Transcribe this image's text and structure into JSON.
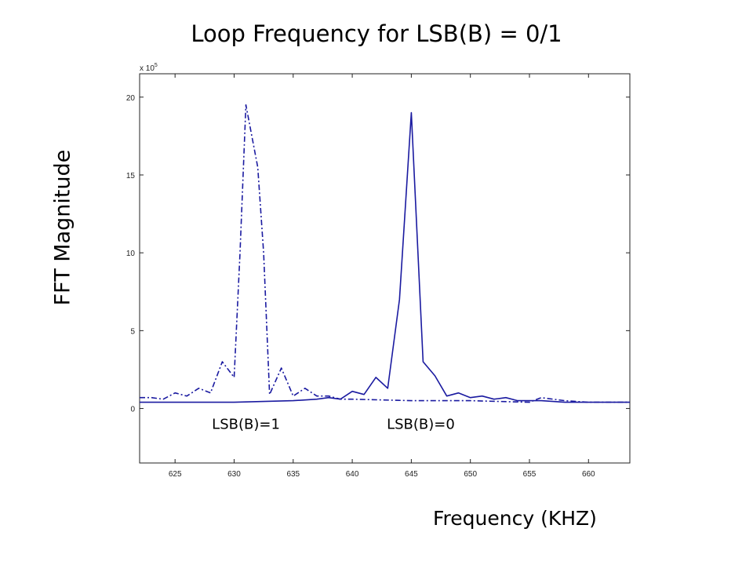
{
  "chart_data": {
    "type": "line",
    "title": "Loop Frequency for LSB(B) = 0/1",
    "xlabel": "Frequency (KHZ)",
    "ylabel": "FFT Magnitude",
    "y_multiplier_label": "x 10",
    "y_multiplier_exponent": "5",
    "xlim": [
      622,
      663.5
    ],
    "ylim": [
      -3.5,
      21.5
    ],
    "xticks": [
      625,
      630,
      635,
      640,
      645,
      650,
      655,
      660
    ],
    "yticks": [
      0,
      5,
      10,
      15,
      20
    ],
    "grid": false,
    "series": [
      {
        "name": "LSB(B)=1",
        "style": "dash-dot",
        "color": "#1a1aa0",
        "x": [
          622,
          623,
          624,
          625,
          626,
          627,
          628,
          629,
          630,
          630.5,
          631,
          632,
          632.5,
          633,
          634,
          635,
          636,
          637,
          638,
          639,
          640,
          645,
          650,
          655,
          656,
          657,
          658,
          660,
          663.5
        ],
        "y": [
          0.7,
          0.7,
          0.6,
          1.0,
          0.8,
          1.3,
          1.0,
          3.0,
          2.0,
          10.0,
          19.5,
          15.5,
          10.0,
          0.9,
          2.6,
          0.8,
          1.3,
          0.8,
          0.8,
          0.6,
          0.6,
          0.5,
          0.5,
          0.4,
          0.7,
          0.6,
          0.5,
          0.4,
          0.4
        ]
      },
      {
        "name": "LSB(B)=0",
        "style": "solid",
        "color": "#1a1aa0",
        "x": [
          622,
          625,
          630,
          635,
          637,
          638,
          639,
          640,
          641,
          642,
          643,
          644,
          645,
          646,
          647,
          648,
          649,
          650,
          651,
          652,
          653,
          654,
          656,
          658,
          660,
          663.5
        ],
        "y": [
          0.4,
          0.4,
          0.4,
          0.5,
          0.6,
          0.7,
          0.6,
          1.1,
          0.9,
          2.0,
          1.3,
          7.0,
          19.0,
          3.0,
          2.1,
          0.8,
          1.0,
          0.7,
          0.8,
          0.6,
          0.7,
          0.5,
          0.5,
          0.4,
          0.4,
          0.4
        ]
      }
    ],
    "annotations": [
      {
        "text": "LSB(B)=1",
        "x": 631.0,
        "y": -1.3
      },
      {
        "text": "LSB(B)=0",
        "x": 645.8,
        "y": -1.3
      }
    ]
  }
}
